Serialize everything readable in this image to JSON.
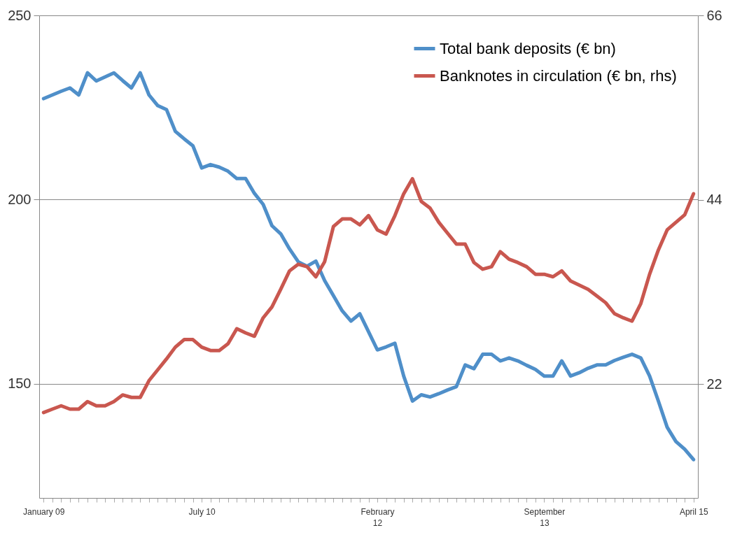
{
  "chart_data": {
    "type": "line",
    "categories": [
      "January 09",
      null,
      null,
      null,
      null,
      null,
      null,
      null,
      null,
      null,
      null,
      null,
      null,
      null,
      null,
      null,
      null,
      null,
      "July 10",
      null,
      null,
      null,
      null,
      null,
      null,
      null,
      null,
      null,
      null,
      null,
      null,
      null,
      null,
      null,
      null,
      null,
      null,
      null,
      "February 12",
      null,
      null,
      null,
      null,
      null,
      null,
      null,
      null,
      null,
      null,
      null,
      null,
      null,
      null,
      null,
      null,
      null,
      null,
      "September 13",
      null,
      null,
      null,
      null,
      null,
      null,
      null,
      null,
      null,
      null,
      null,
      null,
      null,
      null,
      null,
      null,
      "April 15"
    ],
    "series": [
      {
        "name": "Total bank deposits (€ bn)",
        "color": "#4f8fc9",
        "values": [
          227.4,
          228.4,
          229.4,
          230.3,
          228.4,
          234.4,
          232.2,
          233.3,
          234.4,
          232.3,
          230.3,
          234.4,
          228.4,
          225.5,
          224.4,
          218.5,
          216.5,
          214.6,
          208.6,
          209.5,
          208.8,
          207.7,
          205.7,
          205.7,
          201.7,
          198.7,
          192.9,
          190.7,
          186.6,
          183.1,
          181.9,
          183.3,
          178,
          173.9,
          169.8,
          167,
          169,
          164.1,
          159.2,
          160,
          161,
          152.1,
          145.3,
          147,
          146.4,
          147.3,
          148.3,
          149.2,
          155.1,
          154.1,
          158,
          158,
          156.2,
          157,
          156.2,
          155,
          153.9,
          152.1,
          152.1,
          156.2,
          152.1,
          153,
          154.2,
          155.1,
          155.1,
          156.3,
          157.2,
          158,
          157,
          152.1,
          145.3,
          138.2,
          134.3,
          132.2,
          129.4
        ]
      },
      {
        "name": "Banknotes in circulation (€ bn, rhs)",
        "color": "#c9574f",
        "axis": "y2",
        "values": [
          18.6,
          19,
          19.4,
          19,
          19,
          19.9,
          19.4,
          19.4,
          19.9,
          20.7,
          20.4,
          20.4,
          22.4,
          23.7,
          25,
          26.4,
          27.3,
          27.3,
          26.4,
          26,
          26,
          26.8,
          28.6,
          28.1,
          27.7,
          29.9,
          31.2,
          33.3,
          35.5,
          36.3,
          36,
          34.8,
          36.6,
          40.8,
          41.7,
          41.7,
          41,
          42.1,
          40.4,
          39.9,
          42.1,
          44.7,
          46.5,
          43.8,
          43,
          41.3,
          40,
          38.7,
          38.7,
          36.5,
          35.7,
          36,
          37.8,
          36.9,
          36.5,
          36,
          35.1,
          35.1,
          34.8,
          35.5,
          34.3,
          33.8,
          33.3,
          32.5,
          31.7,
          30.4,
          29.9,
          29.5,
          31.6,
          35.1,
          38,
          40.4,
          41.3,
          42.2,
          44.7
        ]
      }
    ],
    "ylim": [
      119,
      250
    ],
    "yticks": [
      150,
      200,
      250
    ],
    "y2lim": [
      8.4,
      66
    ],
    "y2ticks": [
      22,
      44,
      66
    ],
    "grid": "y",
    "legend": "top right",
    "line_style": "solid",
    "marker": "none"
  }
}
